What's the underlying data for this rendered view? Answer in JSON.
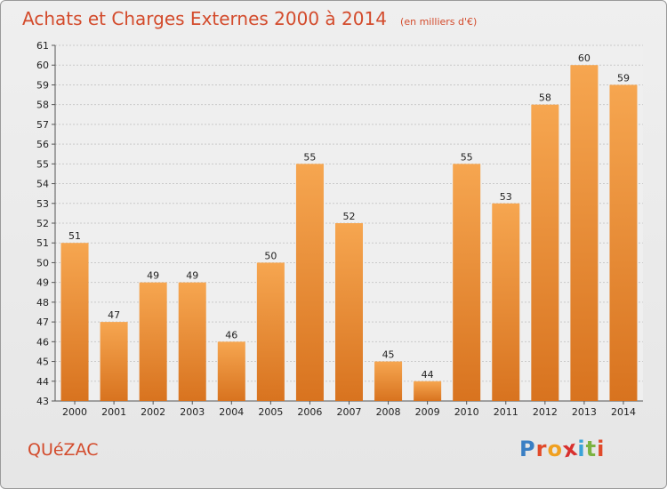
{
  "header": {
    "title": "Achats et Charges Externes 2000 à 2014",
    "unit": "(en milliers d'€)"
  },
  "footer": {
    "commune": "QUéZAC",
    "logo_letters": [
      "P",
      "r",
      "o",
      "x",
      "i",
      "t",
      "i"
    ]
  },
  "colors": {
    "title": "#d34b2c",
    "bar_top": "#f6a650",
    "bar_bottom": "#d8731f",
    "logo": [
      "#3a7fc4",
      "#e14a2a",
      "#f0a020",
      "#d8302e",
      "#3aa3d8",
      "#7cb342",
      "#e14a2a"
    ]
  },
  "chart_data": {
    "type": "bar",
    "categories": [
      "2000",
      "2001",
      "2002",
      "2003",
      "2004",
      "2005",
      "2006",
      "2007",
      "2008",
      "2009",
      "2010",
      "2011",
      "2012",
      "2013",
      "2014"
    ],
    "values": [
      51,
      47,
      49,
      49,
      46,
      50,
      55,
      52,
      45,
      44,
      55,
      53,
      58,
      60,
      59
    ],
    "ylim": [
      43,
      61
    ],
    "yticks": [
      43,
      44,
      45,
      46,
      47,
      48,
      49,
      50,
      51,
      52,
      53,
      54,
      55,
      56,
      57,
      58,
      59,
      60,
      61
    ],
    "grid": true,
    "legend": "none"
  }
}
